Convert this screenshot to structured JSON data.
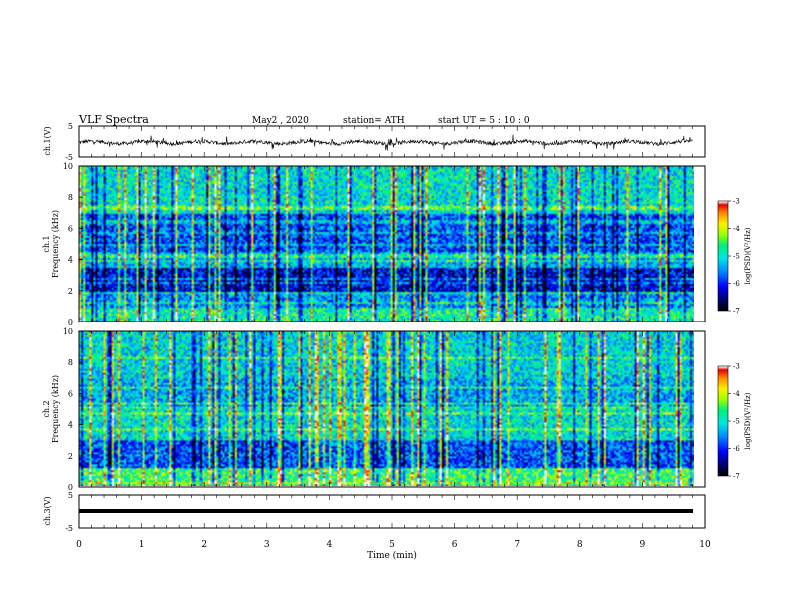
{
  "header": {
    "title": "VLF  Spectra",
    "date": "May2  , 2020",
    "station": "station= ATH",
    "start": "start  UT  =    5  : 10 : 0"
  },
  "colors": {
    "colormap": [
      "#000000",
      "#000080",
      "#0000ff",
      "#0090ff",
      "#00ffff",
      "#00ff80",
      "#a0ff00",
      "#ffff00",
      "#ff9000",
      "#ff0000",
      "#ffffff"
    ]
  },
  "chart_data": [
    {
      "type": "line",
      "name": "ch1-waveform",
      "ylabel": "ch.1(V)",
      "ylim": [
        -5,
        5
      ],
      "yticks": [
        "5",
        "-5"
      ],
      "baseline": -0.3,
      "noise": "random fluctuation of roughly ±1 V, continuous over 0–9.8 min"
    },
    {
      "type": "heatmap",
      "name": "ch1-spectrogram",
      "ylabel_top": "ch.1",
      "ylabel": "Frequency  (kHz)",
      "ylim": [
        0,
        10
      ],
      "yticks": [
        "0",
        "2",
        "4",
        "6",
        "8",
        "10"
      ],
      "xlim": [
        0,
        9.8
      ],
      "colorbar": {
        "label": "log(PSD)(V²/Hz)",
        "range": [
          -7,
          -3
        ],
        "ticks": [
          "-3",
          "-4",
          "-5",
          "-6",
          "-7"
        ]
      }
    },
    {
      "type": "heatmap",
      "name": "ch2-spectrogram",
      "ylabel_top": "ch.2",
      "ylabel": "Frequency  (kHz)",
      "ylim": [
        0,
        10
      ],
      "yticks": [
        "0",
        "2",
        "4",
        "6",
        "8",
        "10"
      ],
      "xlim": [
        0,
        9.8
      ],
      "colorbar": {
        "label": "log(PSD)(V²/Hz)",
        "range": [
          -7,
          -3
        ],
        "ticks": [
          "-3",
          "-4",
          "-5",
          "-6",
          "-7"
        ]
      }
    },
    {
      "type": "line",
      "name": "ch3-waveform",
      "ylabel": "ch.3(V)",
      "ylim": [
        -5,
        5
      ],
      "yticks": [
        "5",
        "-5"
      ],
      "baseline": -0.5,
      "noise": "flat thick line"
    }
  ],
  "xaxis": {
    "label": "Time  (min)",
    "range": [
      0,
      10
    ],
    "ticks": [
      "0",
      "1",
      "2",
      "3",
      "4",
      "5",
      "6",
      "7",
      "8",
      "9",
      "10"
    ]
  }
}
